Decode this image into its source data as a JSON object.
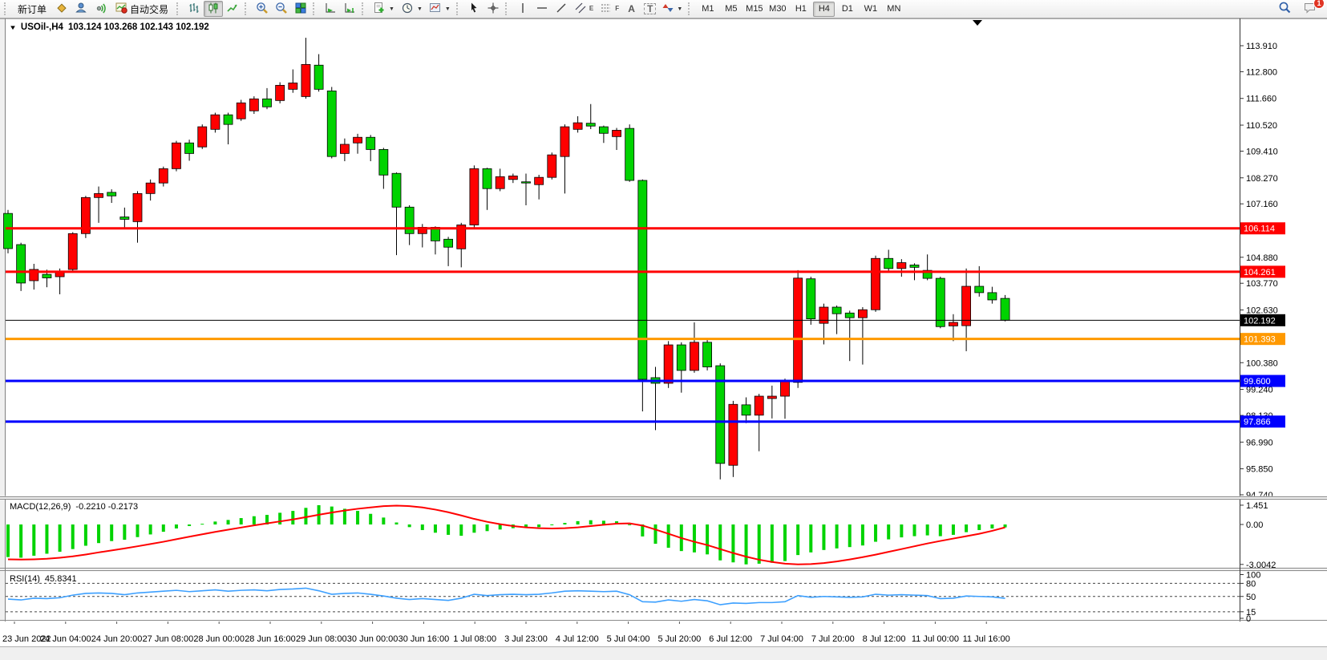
{
  "toolbar": {
    "new_order": "新订单",
    "auto_trading": "自动交易",
    "glyphs": {
      "channel": "E",
      "fibo": "F",
      "text": "A",
      "label": "T"
    },
    "timeframes": [
      "M1",
      "M5",
      "M15",
      "M30",
      "H1",
      "H4",
      "D1",
      "W1",
      "MN"
    ],
    "active_timeframe": "H4",
    "notification_badge": "1"
  },
  "chart": {
    "title": "USOil-,H4",
    "ohlc": "103.124 103.268 102.143 102.192",
    "levels": [
      {
        "label": "106.114",
        "price": 106.114,
        "color": "#ff0000",
        "line_width": 3
      },
      {
        "label": "104.261",
        "price": 104.261,
        "color": "#ff0000",
        "line_width": 3
      },
      {
        "label": "102.192",
        "price": 102.192,
        "color": "#000000",
        "line_width": 1
      },
      {
        "label": "101.393",
        "price": 101.393,
        "color": "#ff9900",
        "line_width": 3
      },
      {
        "label": "99.600",
        "price": 99.6,
        "color": "#0000ff",
        "line_width": 3
      },
      {
        "label": "97.866",
        "price": 97.866,
        "color": "#0000ff",
        "line_width": 3
      }
    ],
    "macd": {
      "label": "MACD(12,26,9)",
      "values_text": "-0.2210 -0.2173",
      "axis_labels": [
        "1.451",
        "0.00",
        "-3.0042"
      ]
    },
    "rsi": {
      "label": "RSI(14)",
      "value_text": "45.8341",
      "axis_labels": [
        "100",
        "80",
        "50",
        "15",
        "0"
      ],
      "levels": [
        80,
        50,
        15
      ]
    }
  },
  "chart_data": {
    "type": "candlestick",
    "symbol": "USOil-",
    "period": "H4",
    "bull_color": "#ff0000",
    "bear_color": "#00d300",
    "wick_color": "#000000",
    "macd_hist_color": "#00d300",
    "macd_signal_color": "#ff0000",
    "rsi_color": "#3da0ff",
    "y_ticks": [
      113.91,
      112.8,
      111.66,
      110.52,
      109.41,
      108.27,
      107.16,
      106.02,
      104.88,
      103.77,
      102.63,
      101.52,
      100.38,
      99.24,
      98.13,
      96.99,
      95.85,
      94.74
    ],
    "x_labels": [
      "23 Jun 2022",
      "24 Jun 04:00",
      "24 Jun 20:00",
      "27 Jun 08:00",
      "28 Jun 00:00",
      "28 Jun 16:00",
      "29 Jun 08:00",
      "30 Jun 00:00",
      "30 Jun 16:00",
      "1 Jul 08:00",
      "3 Jul 23:00",
      "4 Jul 12:00",
      "5 Jul 04:00",
      "5 Jul 20:00",
      "6 Jul 12:00",
      "7 Jul 04:00",
      "7 Jul 20:00",
      "8 Jul 12:00",
      "11 Jul 00:00",
      "11 Jul 16:00"
    ],
    "candles": [
      [
        106.75,
        106.9,
        105.05,
        105.25
      ],
      [
        105.42,
        105.5,
        103.44,
        103.78
      ],
      [
        103.88,
        104.6,
        103.5,
        104.36
      ],
      [
        104.15,
        104.35,
        103.6,
        104.0
      ],
      [
        104.05,
        104.4,
        103.3,
        104.25
      ],
      [
        104.36,
        105.95,
        104.3,
        105.89
      ],
      [
        105.89,
        107.5,
        105.7,
        107.43
      ],
      [
        107.43,
        107.9,
        106.35,
        107.6
      ],
      [
        107.65,
        107.78,
        107.2,
        107.5
      ],
      [
        106.6,
        107.0,
        106.1,
        106.5
      ],
      [
        106.4,
        107.7,
        105.5,
        107.6
      ],
      [
        107.6,
        108.2,
        107.3,
        108.05
      ],
      [
        108.05,
        108.75,
        107.9,
        108.66
      ],
      [
        108.66,
        109.85,
        108.55,
        109.76
      ],
      [
        109.76,
        109.9,
        109.0,
        109.31
      ],
      [
        109.59,
        110.55,
        109.5,
        110.45
      ],
      [
        110.34,
        111.05,
        110.2,
        110.96
      ],
      [
        110.96,
        111.05,
        109.7,
        110.55
      ],
      [
        110.79,
        111.6,
        110.7,
        111.47
      ],
      [
        111.13,
        111.75,
        111.0,
        111.64
      ],
      [
        111.64,
        112.1,
        111.2,
        111.3
      ],
      [
        111.57,
        112.35,
        111.45,
        112.22
      ],
      [
        112.05,
        112.9,
        111.9,
        112.32
      ],
      [
        111.74,
        114.25,
        111.65,
        113.11
      ],
      [
        113.08,
        113.55,
        111.95,
        112.05
      ],
      [
        111.98,
        112.15,
        109.1,
        109.18
      ],
      [
        109.31,
        109.95,
        108.98,
        109.7
      ],
      [
        109.76,
        110.15,
        109.3,
        110.0
      ],
      [
        110.0,
        110.1,
        108.98,
        109.48
      ],
      [
        109.48,
        109.55,
        107.8,
        108.39
      ],
      [
        108.46,
        108.5,
        104.97,
        107.02
      ],
      [
        107.02,
        107.1,
        105.4,
        105.89
      ],
      [
        105.89,
        106.3,
        105.3,
        106.16
      ],
      [
        106.16,
        106.2,
        105.0,
        105.58
      ],
      [
        105.65,
        105.75,
        104.5,
        105.31
      ],
      [
        105.24,
        106.35,
        104.45,
        106.26
      ],
      [
        106.26,
        108.8,
        106.15,
        108.66
      ],
      [
        108.66,
        108.7,
        106.9,
        107.81
      ],
      [
        107.81,
        108.66,
        107.7,
        108.32
      ],
      [
        108.2,
        108.45,
        108.05,
        108.35
      ],
      [
        108.1,
        108.45,
        107.1,
        108.05
      ],
      [
        107.98,
        108.4,
        107.35,
        108.29
      ],
      [
        108.29,
        109.35,
        108.2,
        109.25
      ],
      [
        109.18,
        110.55,
        107.6,
        110.45
      ],
      [
        110.34,
        110.9,
        110.2,
        110.62
      ],
      [
        110.6,
        111.42,
        110.35,
        110.48
      ],
      [
        110.45,
        110.5,
        109.76,
        110.17
      ],
      [
        110.03,
        110.4,
        109.46,
        110.3
      ],
      [
        110.38,
        110.55,
        108.1,
        108.16
      ],
      [
        108.16,
        108.2,
        98.3,
        99.67
      ],
      [
        99.74,
        100.2,
        97.5,
        99.5
      ],
      [
        99.5,
        101.3,
        99.3,
        101.14
      ],
      [
        101.14,
        101.25,
        99.1,
        100.05
      ],
      [
        100.05,
        102.1,
        99.95,
        101.25
      ],
      [
        101.25,
        101.35,
        100.05,
        100.2
      ],
      [
        100.25,
        100.35,
        95.4,
        96.08
      ],
      [
        96.0,
        98.75,
        95.5,
        98.6
      ],
      [
        98.58,
        98.9,
        97.8,
        98.14
      ],
      [
        98.14,
        99.05,
        96.6,
        98.95
      ],
      [
        98.85,
        99.4,
        98.0,
        98.95
      ],
      [
        98.95,
        99.7,
        97.99,
        99.62
      ],
      [
        99.54,
        104.33,
        99.3,
        103.99
      ],
      [
        103.96,
        104.05,
        102.0,
        102.25
      ],
      [
        102.06,
        102.9,
        101.16,
        102.75
      ],
      [
        102.75,
        102.82,
        101.6,
        102.47
      ],
      [
        102.5,
        102.6,
        100.45,
        102.3
      ],
      [
        102.3,
        102.75,
        100.3,
        102.64
      ],
      [
        102.64,
        104.95,
        102.55,
        104.83
      ],
      [
        104.83,
        105.2,
        104.3,
        104.4
      ],
      [
        104.4,
        104.8,
        104.05,
        104.65
      ],
      [
        104.55,
        104.62,
        103.9,
        104.45
      ],
      [
        104.32,
        105.0,
        103.9,
        103.98
      ],
      [
        103.98,
        104.05,
        101.85,
        101.92
      ],
      [
        101.95,
        102.45,
        101.3,
        102.1
      ],
      [
        101.96,
        104.4,
        100.87,
        103.64
      ],
      [
        103.64,
        104.5,
        103.2,
        103.37
      ],
      [
        103.37,
        103.62,
        102.9,
        103.06
      ],
      [
        103.124,
        103.268,
        102.143,
        102.192
      ]
    ],
    "macd_hist": [
      -2.45,
      -2.5,
      -2.35,
      -2.2,
      -2.05,
      -1.85,
      -1.6,
      -1.4,
      -1.25,
      -1.15,
      -0.95,
      -0.75,
      -0.55,
      -0.3,
      -0.12,
      0.05,
      0.22,
      0.34,
      0.48,
      0.62,
      0.72,
      0.88,
      1.02,
      1.25,
      1.451,
      1.35,
      1.18,
      1.02,
      0.8,
      0.52,
      0.15,
      -0.2,
      -0.42,
      -0.62,
      -0.78,
      -0.85,
      -0.62,
      -0.5,
      -0.38,
      -0.28,
      -0.26,
      -0.2,
      -0.05,
      0.12,
      0.25,
      0.32,
      0.28,
      0.24,
      -0.05,
      -0.9,
      -1.45,
      -1.75,
      -2.0,
      -2.1,
      -2.25,
      -2.7,
      -2.85,
      -3.0,
      -2.95,
      -2.88,
      -2.75,
      -2.3,
      -2.1,
      -1.92,
      -1.8,
      -1.7,
      -1.58,
      -1.3,
      -1.12,
      -0.97,
      -0.88,
      -0.82,
      -0.88,
      -0.78,
      -0.58,
      -0.42,
      -0.3,
      -0.221
    ],
    "macd_signal": [
      -2.62,
      -2.64,
      -2.62,
      -2.58,
      -2.5,
      -2.4,
      -2.26,
      -2.1,
      -1.95,
      -1.8,
      -1.64,
      -1.47,
      -1.3,
      -1.11,
      -0.92,
      -0.74,
      -0.56,
      -0.39,
      -0.23,
      -0.07,
      0.08,
      0.23,
      0.38,
      0.55,
      0.73,
      0.9,
      1.05,
      1.18,
      1.28,
      1.38,
      1.42,
      1.38,
      1.28,
      1.12,
      0.92,
      0.68,
      0.42,
      0.2,
      0.02,
      -0.12,
      -0.22,
      -0.28,
      -0.3,
      -0.28,
      -0.22,
      -0.12,
      -0.02,
      0.06,
      0.08,
      -0.08,
      -0.38,
      -0.7,
      -1.02,
      -1.3,
      -1.55,
      -1.85,
      -2.15,
      -2.42,
      -2.65,
      -2.82,
      -2.95,
      -3.0042,
      -2.98,
      -2.9,
      -2.78,
      -2.63,
      -2.46,
      -2.27,
      -2.06,
      -1.85,
      -1.64,
      -1.43,
      -1.24,
      -1.06,
      -0.88,
      -0.7,
      -0.48,
      -0.2173
    ],
    "rsi_values": [
      44,
      42,
      46,
      45,
      47,
      53,
      57,
      58,
      57,
      54,
      58,
      60,
      62,
      64,
      61,
      63,
      65,
      62,
      64,
      65,
      63,
      66,
      67,
      69,
      63,
      55,
      57,
      58,
      55,
      51,
      46,
      43,
      45,
      43,
      41,
      46,
      55,
      52,
      54,
      55,
      54,
      55,
      58,
      62,
      63,
      62,
      61,
      62,
      54,
      38,
      37,
      42,
      39,
      43,
      40,
      31,
      35,
      34,
      36,
      36,
      38,
      52,
      48,
      50,
      49,
      48,
      49,
      55,
      53,
      54,
      53,
      52,
      45,
      46,
      51,
      50,
      49,
      45.8341
    ]
  }
}
